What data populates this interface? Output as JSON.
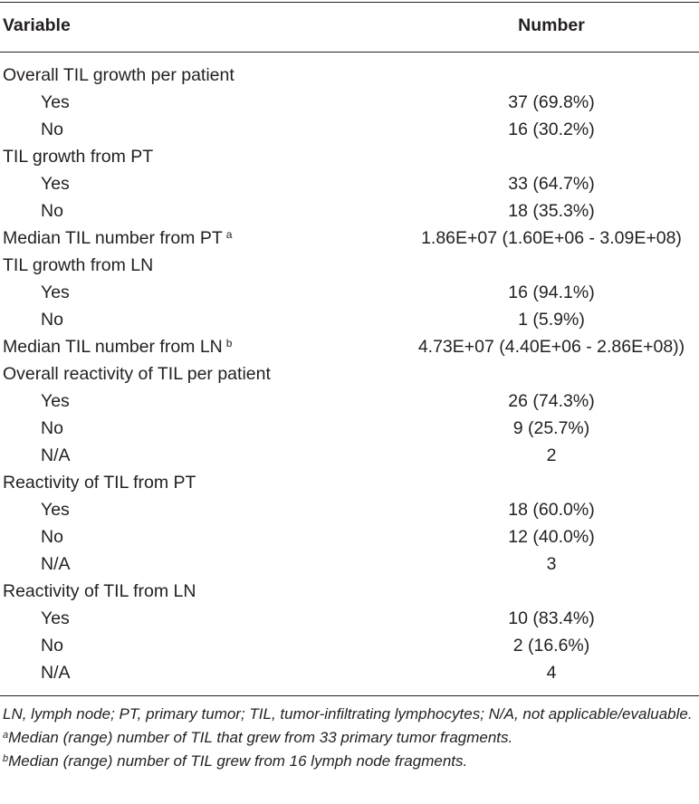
{
  "table": {
    "headers": {
      "variable": "Variable",
      "number": "Number"
    },
    "rows": [
      {
        "label": "Overall TIL growth per patient",
        "value": "",
        "indent": false
      },
      {
        "label": "Yes",
        "value": "37 (69.8%)",
        "indent": true
      },
      {
        "label": "No",
        "value": "16 (30.2%)",
        "indent": true
      },
      {
        "label": "TIL growth from PT",
        "value": "",
        "indent": false
      },
      {
        "label": "Yes",
        "value": "33 (64.7%)",
        "indent": true
      },
      {
        "label": "No",
        "value": "18 (35.3%)",
        "indent": true
      },
      {
        "label": "Median TIL number from PT",
        "sup": "a",
        "value": "1.86E+07 (1.60E+06 - 3.09E+08)",
        "indent": false
      },
      {
        "label": "TIL growth from LN",
        "value": "",
        "indent": false
      },
      {
        "label": "Yes",
        "value": "16 (94.1%)",
        "indent": true
      },
      {
        "label": "No",
        "value": "1 (5.9%)",
        "indent": true
      },
      {
        "label": "Median TIL number from LN",
        "sup": "b",
        "value": "4.73E+07 (4.40E+06 - 2.86E+08))",
        "indent": false
      },
      {
        "label": "Overall reactivity of TIL per patient",
        "value": "",
        "indent": false
      },
      {
        "label": "Yes",
        "value": "26 (74.3%)",
        "indent": true
      },
      {
        "label": "No",
        "value": "9 (25.7%)",
        "indent": true
      },
      {
        "label": "N/A",
        "value": "2",
        "indent": true
      },
      {
        "label": "Reactivity of TIL from PT",
        "value": "",
        "indent": false
      },
      {
        "label": "Yes",
        "value": "18 (60.0%)",
        "indent": true
      },
      {
        "label": "No",
        "value": "12 (40.0%)",
        "indent": true
      },
      {
        "label": "N/A",
        "value": "3",
        "indent": true
      },
      {
        "label": "Reactivity of TIL from LN",
        "value": "",
        "indent": false
      },
      {
        "label": "Yes",
        "value": "10 (83.4%)",
        "indent": true
      },
      {
        "label": "No",
        "value": "2 (16.6%)",
        "indent": true
      },
      {
        "label": "N/A",
        "value": "4",
        "indent": true
      }
    ]
  },
  "footnotes": {
    "abbreviations": "LN, lymph node; PT, primary tumor; TIL, tumor-infiltrating lymphocytes; N/A, not applicable/evaluable.",
    "a_marker": "a",
    "a_text": "Median (range) number of TIL that grew from 33 primary tumor fragments.",
    "b_marker": "b",
    "b_text": "Median (range) number of TIL grew from 16 lymph node fragments."
  }
}
